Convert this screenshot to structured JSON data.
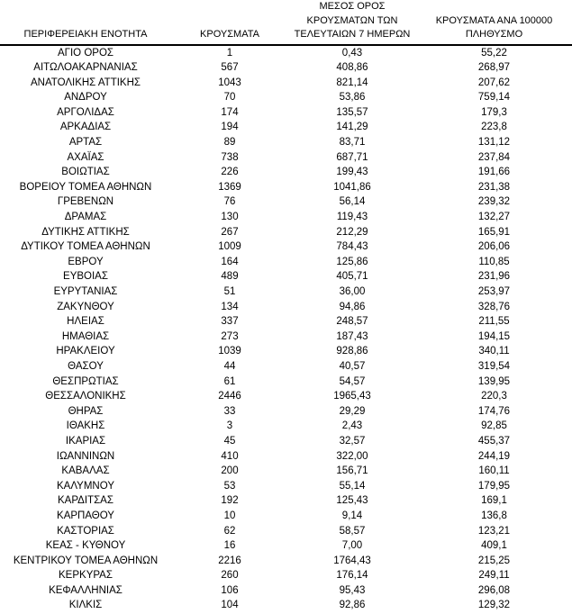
{
  "table": {
    "columns": [
      {
        "id": "region",
        "label": "ΠΕΡΙΦΕΡΕΙΑΚΗ ΕΝΟΤΗΤΑ"
      },
      {
        "id": "cases",
        "label": "ΚΡΟΥΣΜΑΤΑ"
      },
      {
        "id": "avg7day",
        "label": "ΜΕΣΟΣ ΟΡΟΣ\nΚΡΟΥΣΜΑΤΩΝ ΤΩΝ\nΤΕΛΕΥΤΑΙΩΝ 7 ΗΜΕΡΩΝ"
      },
      {
        "id": "per100k",
        "label": "ΚΡΟΥΣΜΑΤΑ ΑΝΑ 100000\nΠΛΗΘΥΣΜΟ"
      }
    ],
    "rows": [
      [
        "ΑΓΙΟ ΟΡΟΣ",
        "1",
        "0,43",
        "55,22"
      ],
      [
        "ΑΙΤΩΛΟΑΚΑΡΝΑΝΙΑΣ",
        "567",
        "408,86",
        "268,97"
      ],
      [
        "ΑΝΑΤΟΛΙΚΗΣ ΑΤΤΙΚΗΣ",
        "1043",
        "821,14",
        "207,62"
      ],
      [
        "ΑΝΔΡΟΥ",
        "70",
        "53,86",
        "759,14"
      ],
      [
        "ΑΡΓΟΛΙΔΑΣ",
        "174",
        "135,57",
        "179,3"
      ],
      [
        "ΑΡΚΑΔΙΑΣ",
        "194",
        "141,29",
        "223,8"
      ],
      [
        "ΑΡΤΑΣ",
        "89",
        "83,71",
        "131,12"
      ],
      [
        "ΑΧΑΪΑΣ",
        "738",
        "687,71",
        "237,84"
      ],
      [
        "ΒΟΙΩΤΙΑΣ",
        "226",
        "199,43",
        "191,66"
      ],
      [
        "ΒΟΡΕΙΟΥ ΤΟΜΕΑ ΑΘΗΝΩΝ",
        "1369",
        "1041,86",
        "231,38"
      ],
      [
        "ΓΡΕΒΕΝΩΝ",
        "76",
        "56,14",
        "239,32"
      ],
      [
        "ΔΡΑΜΑΣ",
        "130",
        "119,43",
        "132,27"
      ],
      [
        "ΔΥΤΙΚΗΣ ΑΤΤΙΚΗΣ",
        "267",
        "212,29",
        "165,91"
      ],
      [
        "ΔΥΤΙΚΟΥ ΤΟΜΕΑ ΑΘΗΝΩΝ",
        "1009",
        "784,43",
        "206,06"
      ],
      [
        "ΕΒΡΟΥ",
        "164",
        "125,86",
        "110,85"
      ],
      [
        "ΕΥΒΟΙΑΣ",
        "489",
        "405,71",
        "231,96"
      ],
      [
        "ΕΥΡΥΤΑΝΙΑΣ",
        "51",
        "36,00",
        "253,97"
      ],
      [
        "ΖΑΚΥΝΘΟΥ",
        "134",
        "94,86",
        "328,76"
      ],
      [
        "ΗΛΕΙΑΣ",
        "337",
        "248,57",
        "211,55"
      ],
      [
        "ΗΜΑΘΙΑΣ",
        "273",
        "187,43",
        "194,15"
      ],
      [
        "ΗΡΑΚΛΕΙΟΥ",
        "1039",
        "928,86",
        "340,11"
      ],
      [
        "ΘΑΣΟΥ",
        "44",
        "40,57",
        "319,54"
      ],
      [
        "ΘΕΣΠΡΩΤΙΑΣ",
        "61",
        "54,57",
        "139,95"
      ],
      [
        "ΘΕΣΣΑΛΟΝΙΚΗΣ",
        "2446",
        "1965,43",
        "220,3"
      ],
      [
        "ΘΗΡΑΣ",
        "33",
        "29,29",
        "174,76"
      ],
      [
        "ΙΘΑΚΗΣ",
        "3",
        "2,43",
        "92,85"
      ],
      [
        "ΙΚΑΡΙΑΣ",
        "45",
        "32,57",
        "455,37"
      ],
      [
        "ΙΩΑΝΝΙΝΩΝ",
        "410",
        "322,00",
        "244,19"
      ],
      [
        "ΚΑΒΑΛΑΣ",
        "200",
        "156,71",
        "160,11"
      ],
      [
        "ΚΑΛΥΜΝΟΥ",
        "53",
        "55,14",
        "179,95"
      ],
      [
        "ΚΑΡΔΙΤΣΑΣ",
        "192",
        "125,43",
        "169,1"
      ],
      [
        "ΚΑΡΠΑΘΟΥ",
        "10",
        "9,14",
        "136,8"
      ],
      [
        "ΚΑΣΤΟΡΙΑΣ",
        "62",
        "58,57",
        "123,21"
      ],
      [
        "ΚΕΑΣ - ΚΥΘΝΟΥ",
        "16",
        "7,00",
        "409,1"
      ],
      [
        "ΚΕΝΤΡΙΚΟΥ ΤΟΜΕΑ ΑΘΗΝΩΝ",
        "2216",
        "1764,43",
        "215,25"
      ],
      [
        "ΚΕΡΚΥΡΑΣ",
        "260",
        "176,14",
        "249,11"
      ],
      [
        "ΚΕΦΑΛΛΗΝΙΑΣ",
        "106",
        "95,43",
        "296,08"
      ],
      [
        "ΚΙΛΚΙΣ",
        "104",
        "92,86",
        "129,32"
      ]
    ]
  },
  "colors": {
    "text": "#000000",
    "header_rule": "#000000",
    "background": "#ffffff"
  }
}
